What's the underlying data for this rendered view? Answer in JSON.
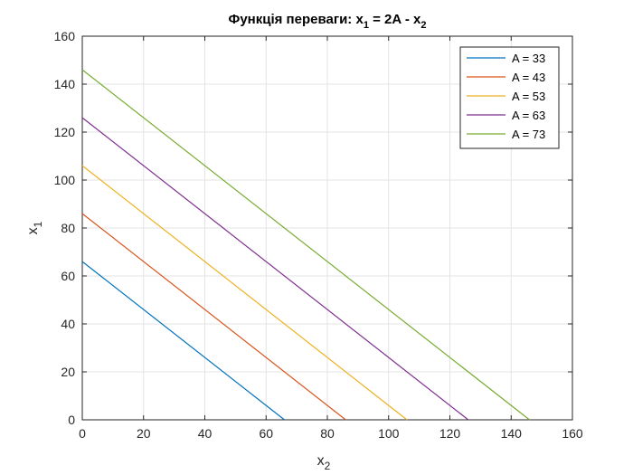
{
  "chart_data": {
    "type": "line",
    "title": {
      "prefix": "Функція переваги: x",
      "sub1": "1",
      "middle": " = 2A - x",
      "sub2": "2"
    },
    "xlabel": {
      "base": "x",
      "sub": "2"
    },
    "ylabel": {
      "base": "x",
      "sub": "1"
    },
    "xlim": [
      0,
      160
    ],
    "ylim": [
      0,
      160
    ],
    "xticks": [
      0,
      20,
      40,
      60,
      80,
      100,
      120,
      140,
      160
    ],
    "yticks": [
      0,
      20,
      40,
      60,
      80,
      100,
      120,
      140,
      160
    ],
    "grid": true,
    "legend_position": "top-right",
    "series": [
      {
        "name": "A = 33",
        "color": "#0072BD",
        "x": [
          0,
          66
        ],
        "y": [
          66,
          0
        ]
      },
      {
        "name": "A = 43",
        "color": "#D95319",
        "x": [
          0,
          86
        ],
        "y": [
          86,
          0
        ]
      },
      {
        "name": "A = 53",
        "color": "#EDB120",
        "x": [
          0,
          106
        ],
        "y": [
          106,
          0
        ]
      },
      {
        "name": "A = 63",
        "color": "#7E2F8E",
        "x": [
          0,
          126
        ],
        "y": [
          126,
          0
        ]
      },
      {
        "name": "A = 73",
        "color": "#77AC30",
        "x": [
          0,
          146
        ],
        "y": [
          146,
          0
        ]
      }
    ]
  }
}
